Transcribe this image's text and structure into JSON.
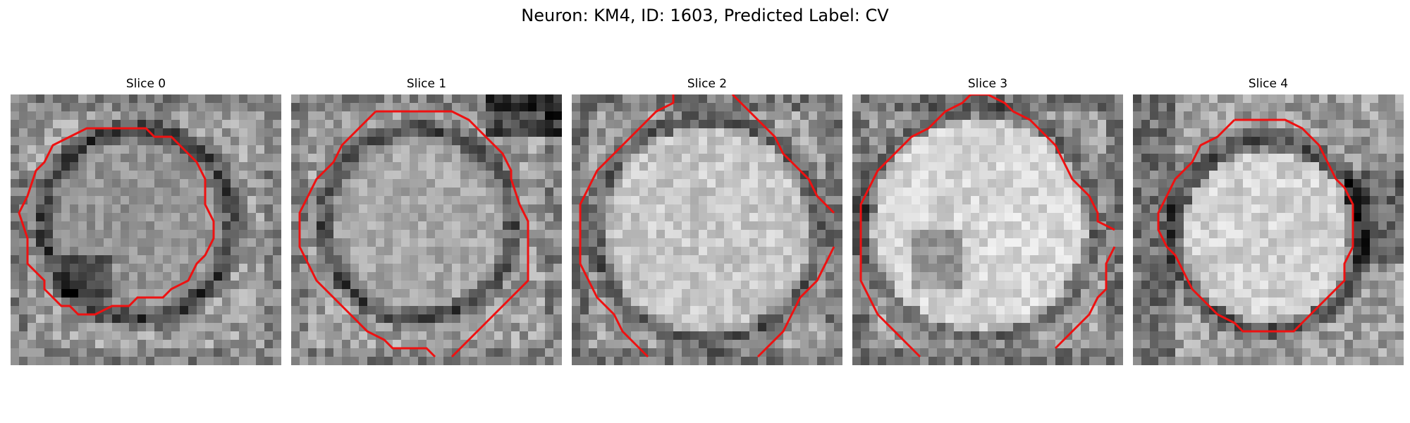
{
  "figure": {
    "suptitle": "Neuron: KM4, ID: 1603, Predicted Label: CV"
  },
  "contour_color": "#ee1111",
  "panels": [
    {
      "title": "Slice 0",
      "image": "grayscale-microscopy-patch",
      "bright": 0.58,
      "ring": 0.42,
      "edge_mode": "dark-ring"
    },
    {
      "title": "Slice 1",
      "image": "grayscale-microscopy-patch",
      "bright": 0.66,
      "ring": 0.36,
      "edge_mode": "dark-ring"
    },
    {
      "title": "Slice 2",
      "image": "grayscale-microscopy-patch",
      "bright": 0.78,
      "ring": 0.28,
      "edge_mode": "dark-band"
    },
    {
      "title": "Slice 3",
      "image": "grayscale-microscopy-patch",
      "bright": 0.84,
      "ring": 0.22,
      "edge_mode": "dark-band"
    },
    {
      "title": "Slice 4",
      "image": "grayscale-microscopy-patch",
      "bright": 0.82,
      "ring": 0.34,
      "edge_mode": "left-dark"
    }
  ]
}
